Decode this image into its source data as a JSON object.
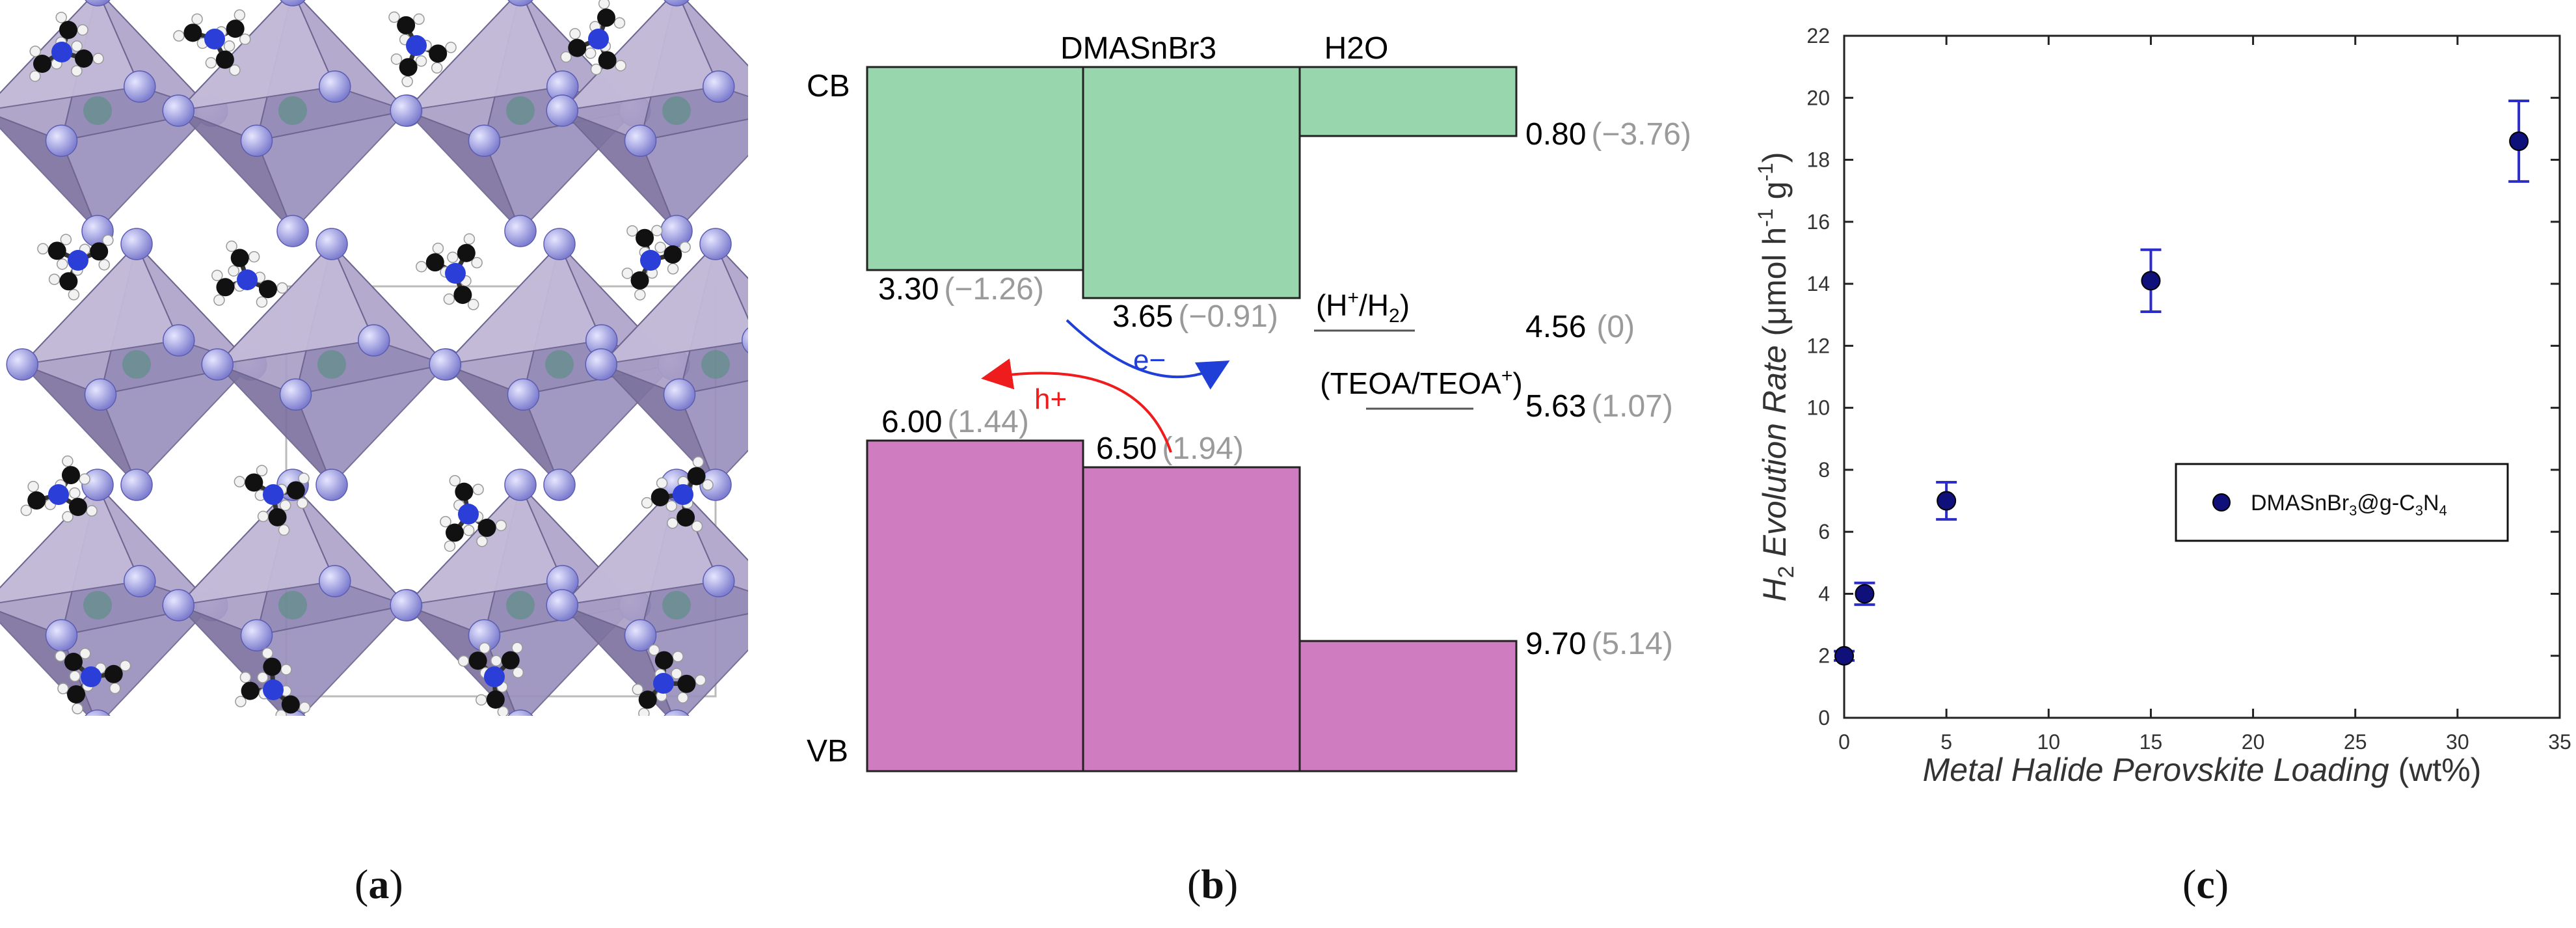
{
  "panel_a": {
    "caption": {
      "open": "(",
      "letter": "a",
      "close": ")"
    }
  },
  "panel_b": {
    "caption": {
      "open": "(",
      "letter": "b",
      "close": ")"
    },
    "cb_label": "CB",
    "vb_label": "VB",
    "columns": [
      "",
      "DMASnBr3",
      "H2O"
    ],
    "cb_levels": [
      {
        "value": "3.30",
        "nhe": "(−1.26)"
      },
      {
        "value": "3.65",
        "nhe": "(−0.91)"
      },
      {
        "value": "0.80",
        "nhe": "(−3.76)"
      }
    ],
    "vb_levels": [
      {
        "value": "6.00",
        "nhe": "(1.44)"
      },
      {
        "value": "6.50",
        "nhe": "(1.94)"
      },
      {
        "value": "9.70",
        "nhe": "(5.14)"
      }
    ],
    "redox": [
      {
        "label_main": "(H",
        "label_sup": "+",
        "label_rest": "/H",
        "label_sub": "2",
        "label_end": ")",
        "value": "4.56",
        "nhe": "(0)"
      },
      {
        "label_main": "(TEOA/TEOA",
        "label_sup": "+",
        "label_rest": ")",
        "value": "5.63",
        "nhe": "(1.07)"
      }
    ],
    "electron_label": "e−",
    "hole_label": "h+",
    "colors": {
      "cb": "#98d6ad",
      "vb": "#d07cc0",
      "electron": "#1f3fd6",
      "hole": "#ee1c1c",
      "nhe_text": "#9a9a9a"
    }
  },
  "panel_c": {
    "caption": {
      "open": "(",
      "letter": "c",
      "close": ")"
    },
    "chart_data": {
      "type": "scatter",
      "xlabel": "Metal Halide Perovskite Loading (wt%)",
      "ylabel": "H2 Evolution Rate (μmol h-1 g-1)",
      "xlim": [
        0,
        35
      ],
      "ylim": [
        0,
        22
      ],
      "x_ticks": [
        "0",
        "5",
        "10",
        "15",
        "20",
        "25",
        "30",
        "35"
      ],
      "y_ticks": [
        "0",
        "2",
        "4",
        "6",
        "8",
        "10",
        "12",
        "14",
        "16",
        "18",
        "20",
        "22"
      ],
      "legend_position": "right",
      "series": [
        {
          "name": "DMASnBr3@g-C3N4",
          "x": [
            0,
            1,
            5,
            15,
            33
          ],
          "y": [
            2.0,
            4.0,
            7.0,
            14.1,
            18.6
          ],
          "error": [
            0.15,
            0.35,
            0.6,
            1.0,
            1.3
          ]
        }
      ],
      "colors": {
        "marker": "#10107a",
        "error_bar": "#2c2cc8"
      }
    }
  }
}
